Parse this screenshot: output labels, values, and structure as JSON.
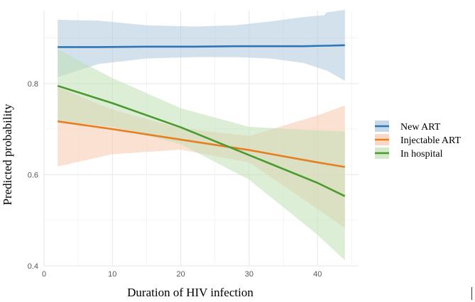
{
  "chart_data": {
    "type": "line",
    "title": "",
    "xlabel": "Duration of HIV infection",
    "ylabel": "Predicted probability",
    "xlim": [
      0,
      46
    ],
    "ylim": [
      0.4,
      0.96
    ],
    "x_ticks": [
      0,
      10,
      20,
      30,
      40
    ],
    "y_ticks": [
      0.4,
      0.6,
      0.8
    ],
    "x_tick_labels": [
      "0",
      "10",
      "20",
      "30",
      "40"
    ],
    "y_tick_labels": [
      "0.4",
      "0.6",
      "0.8"
    ],
    "grid": true,
    "legend_position": "right",
    "series": [
      {
        "name": "New ART",
        "color": "#2e75b6",
        "band_color": "#aec8de",
        "x": [
          2,
          8,
          15,
          22,
          28,
          33,
          38,
          41,
          41.3,
          44
        ],
        "y": [
          0.88,
          0.88,
          0.881,
          0.881,
          0.882,
          0.882,
          0.882,
          0.883,
          0.883,
          0.884
        ],
        "lower": [
          0.814,
          0.843,
          0.855,
          0.858,
          0.858,
          0.855,
          0.845,
          0.83,
          0.829,
          0.806
        ],
        "upper": [
          0.94,
          0.938,
          0.928,
          0.925,
          0.928,
          0.936,
          0.946,
          0.95,
          0.956,
          0.962
        ]
      },
      {
        "name": "Injectable ART",
        "color": "#e67e22",
        "band_color": "#f8c8ac",
        "x": [
          2,
          10,
          20,
          30,
          40,
          44
        ],
        "y": [
          0.717,
          0.7,
          0.677,
          0.654,
          0.627,
          0.617
        ],
        "lower": [
          0.618,
          0.645,
          0.655,
          0.627,
          0.525,
          0.483
        ],
        "upper": [
          0.792,
          0.743,
          0.702,
          0.685,
          0.73,
          0.752
        ]
      },
      {
        "name": "In hospital",
        "color": "#4a9a2f",
        "band_color": "#bfe0b4",
        "x": [
          2,
          10,
          20,
          30,
          40,
          44
        ],
        "y": [
          0.795,
          0.757,
          0.704,
          0.643,
          0.582,
          0.553
        ],
        "lower": [
          0.718,
          0.705,
          0.667,
          0.589,
          0.468,
          0.412
        ],
        "upper": [
          0.875,
          0.812,
          0.746,
          0.705,
          0.697,
          0.695
        ]
      }
    ]
  }
}
